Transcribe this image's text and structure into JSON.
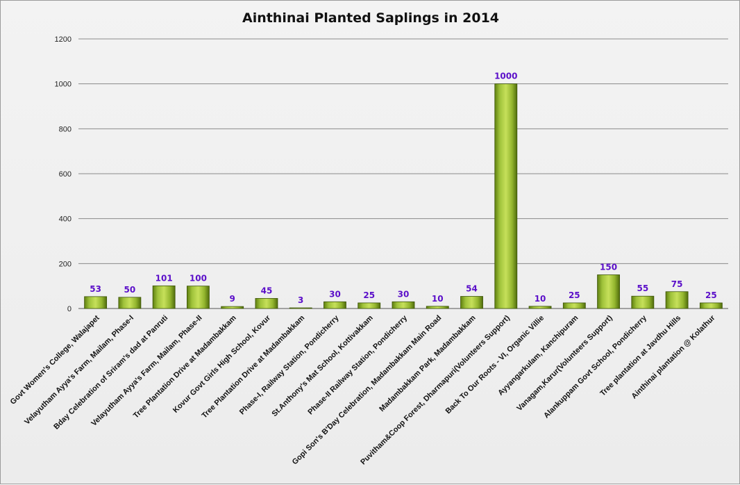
{
  "chart_data": {
    "type": "bar",
    "title": "Ainthinai Planted Saplings in 2014",
    "xlabel": "",
    "ylabel": "",
    "ylim": [
      0,
      1200
    ],
    "yticks": [
      0,
      200,
      400,
      600,
      800,
      1000,
      1200
    ],
    "grid": true,
    "legend": "none",
    "colors": {
      "bar_light": "#b9d84a",
      "bar_dark": "#4f6b0c",
      "label": "#5b0fc9",
      "grid": "#8a8a8a",
      "axis_text": "#222222"
    },
    "categories": [
      "Govt Women's College, Walajapet",
      "Velayutham Ayya's Farm, Mailam, Phase-I",
      "Bday Celebration of Sriram's dad at Panruti",
      "Velayutham Ayya's Farm, Mailam, Phase-II",
      "Tree Plantation Drive at Madambakkam",
      "Kovur Govt Girls High School, Kovur",
      "Tree Plantation Drive at Madambakkam",
      "Phase-I, Railway Station, Pondicherry",
      "St.Anthony's Mat School,  Kottivakkam",
      "Phase-II Railway Station, Pondicherry",
      "Gopi Son's B'Day Celebration, Madambakkam  Main Road",
      "Madambakkam  Park, Madambakkam",
      "Puvitham&Coop Forest, Dharmapuri(Volunteers Support)",
      "Back To Our Roots - VI, Organic Villie",
      "Ayyangarkulam,  Kanchipuram",
      "Vanagam,Karur(Volunteers Support)",
      "Alankuppam Govt School, Pondicherry",
      "Tree plantation at Javdhu Hills",
      "Ainthinai plantation @ Kolathur"
    ],
    "values": [
      53,
      50,
      101,
      100,
      9,
      45,
      3,
      30,
      25,
      30,
      10,
      54,
      1000,
      10,
      25,
      150,
      55,
      75,
      25
    ],
    "data_labels": [
      "53",
      "50",
      "101",
      "100",
      "9",
      "45",
      "3",
      "30",
      "25",
      "30",
      "10",
      "54",
      "1000",
      "10",
      "25",
      "150",
      "55",
      "75",
      "25"
    ]
  }
}
